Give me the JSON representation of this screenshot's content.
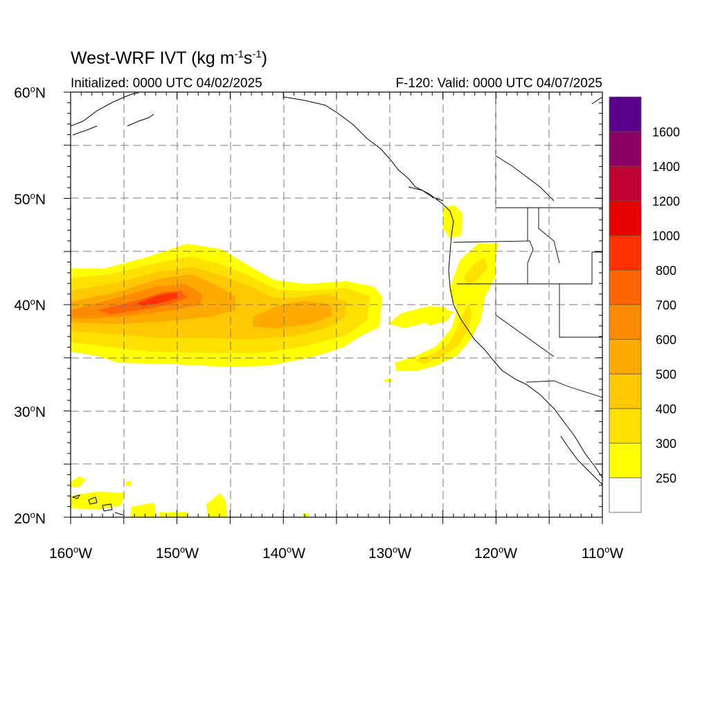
{
  "header": {
    "title_main": "West-WRF IVT (kg m",
    "title_exp1": "-1",
    "title_mid": "s",
    "title_exp2": "-1",
    "title_end": ")",
    "initialized": "Initialized: 0000 UTC 04/02/2025",
    "valid": "F-120: Valid: 0000 UTC 04/07/2025"
  },
  "map": {
    "lon_labels": [
      "160",
      "150",
      "140",
      "130",
      "120",
      "110"
    ],
    "lon_suffix": "W",
    "lat_labels": [
      "60",
      "50",
      "40",
      "30",
      "20"
    ],
    "lat_suffix": "N",
    "gridlines": "dashed",
    "extent": {
      "lon_min": -160,
      "lon_max": -110,
      "lat_min": 20,
      "lat_max": 60
    }
  },
  "colorbar": {
    "labels": [
      "250",
      "300",
      "400",
      "500",
      "600",
      "700",
      "800",
      "1000",
      "1200",
      "1400",
      "1600"
    ],
    "colors": [
      "#ffffff",
      "#ffff00",
      "#ffe100",
      "#ffc800",
      "#ffaa00",
      "#ff8c00",
      "#ff6400",
      "#ff3200",
      "#e60000",
      "#c00032",
      "#8c0064",
      "#5a008c"
    ]
  },
  "fields": {
    "ivt_contour_levels": [
      250,
      300,
      400,
      500,
      600,
      700
    ],
    "features": [
      {
        "name": "central-pacific-plume",
        "peak_level": 700
      },
      {
        "name": "mid-pacific-plume",
        "peak_level": 500
      },
      {
        "name": "northern-california-band",
        "peak_level": 400
      },
      {
        "name": "pacific-northwest-band",
        "peak_level": 300
      },
      {
        "name": "hawaii-patches",
        "peak_level": 300
      }
    ]
  }
}
